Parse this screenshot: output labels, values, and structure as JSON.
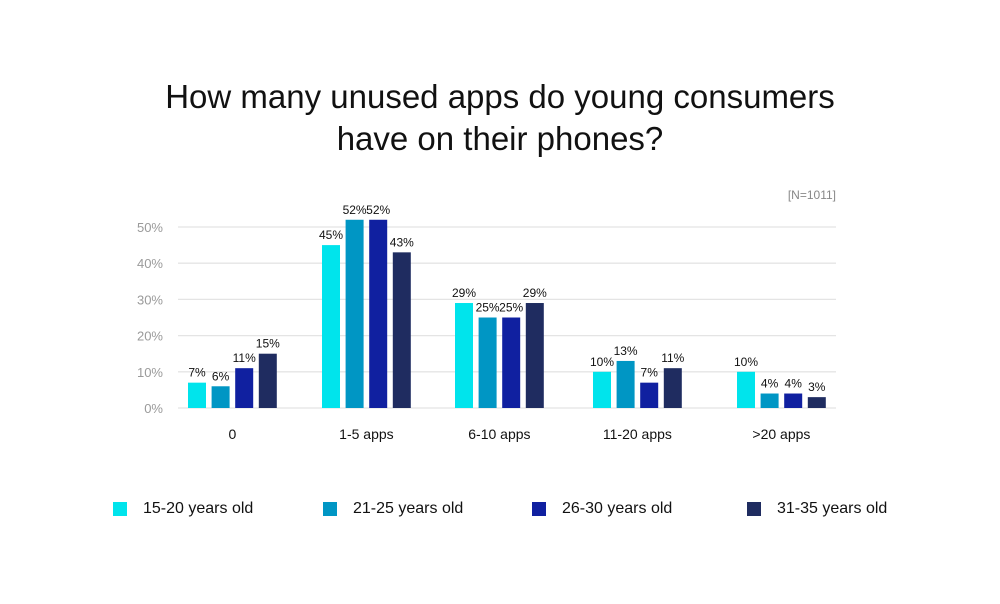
{
  "chart_data": {
    "type": "bar",
    "title": [
      "How many unused apps do young consumers",
      "have on their phones?"
    ],
    "note": "[N=1011]",
    "xlabel": "",
    "ylabel": "",
    "ylim": [
      0,
      50
    ],
    "yticks": [
      "0%",
      "10%",
      "20%",
      "30%",
      "40%",
      "50%"
    ],
    "grid": true,
    "legend_position": "bottom",
    "categories": [
      "0",
      "1-5 apps",
      "6-10 apps",
      "11-20 apps",
      ">20 apps"
    ],
    "series": [
      {
        "name": "15-20 years old",
        "color": "#00e4ec",
        "values": [
          7,
          45,
          29,
          10,
          10
        ]
      },
      {
        "name": "21-25 years old",
        "color": "#0096c4",
        "values": [
          6,
          52,
          25,
          13,
          4
        ]
      },
      {
        "name": "26-30 years old",
        "color": "#1020a0",
        "values": [
          11,
          52,
          25,
          7,
          4
        ]
      },
      {
        "name": "31-35 years old",
        "color": "#1f2c60",
        "values": [
          15,
          43,
          29,
          11,
          3
        ]
      }
    ]
  }
}
